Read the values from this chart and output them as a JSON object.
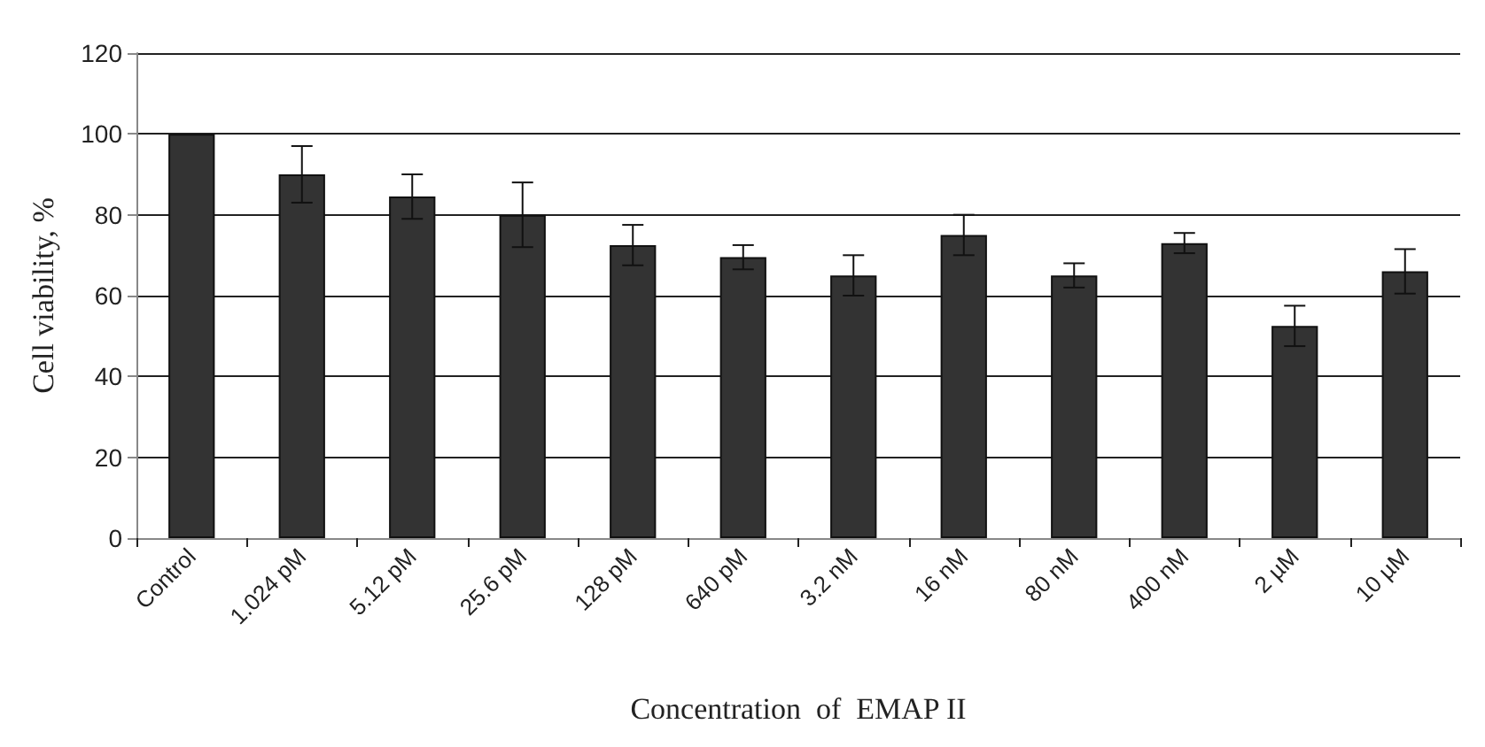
{
  "chart_data": {
    "type": "bar",
    "xlabel": "Concentration  of  EMAP II",
    "ylabel": "Cell viability, %",
    "categories": [
      "Control",
      "1.024 pM",
      "5.12 pM",
      "25.6 pM",
      "128 pM",
      "640 pM",
      "3.2 nM",
      "16 nM",
      "80 nM",
      "400 nM",
      "2 µM",
      "10 µM"
    ],
    "values": [
      100,
      90,
      84.5,
      80,
      72.5,
      69.5,
      65,
      75,
      65,
      73,
      52.5,
      66
    ],
    "errors": [
      null,
      7,
      5.5,
      8,
      5,
      3,
      5,
      5,
      3,
      2.5,
      5,
      5.5
    ],
    "color": "#333333",
    "ylim": [
      0,
      120
    ],
    "yticks": [
      0,
      20,
      40,
      60,
      80,
      100,
      120
    ],
    "grid": "y"
  }
}
